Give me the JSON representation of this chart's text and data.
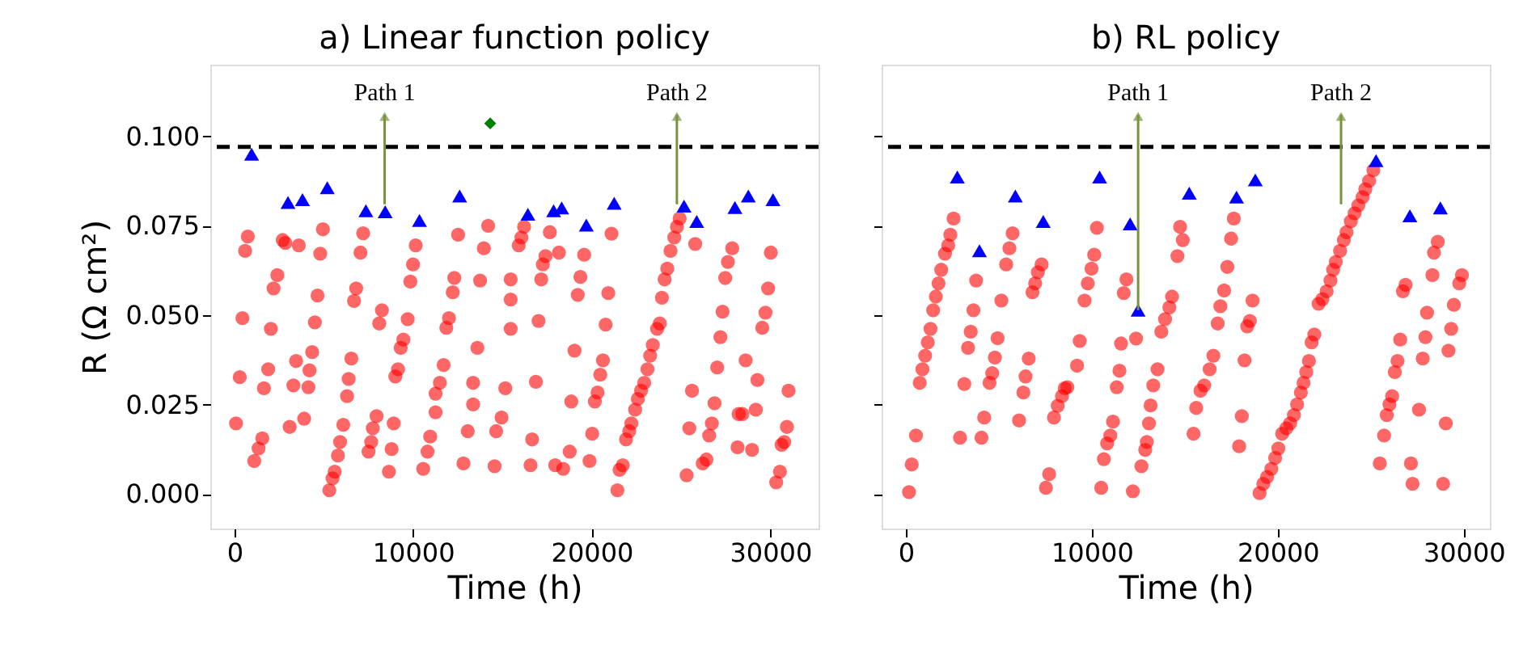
{
  "chart_data": [
    {
      "type": "scatter",
      "title": "a) Linear function policy",
      "xlabel": "Time (h)",
      "ylabel": "R (Ω cm²)",
      "xlim": [
        -1350,
        32700
      ],
      "ylim": [
        -0.0096,
        0.12
      ],
      "xticks": [
        0,
        10000,
        20000,
        30000
      ],
      "yticks": [
        {
          "value": 0,
          "label": "0.000"
        },
        {
          "value": 0.025,
          "label": "0.025"
        },
        {
          "value": 0.05,
          "label": "0.050"
        },
        {
          "value": 0.075,
          "label": "0.075"
        },
        {
          "value": 0.1,
          "label": "0.100"
        }
      ],
      "grid": false,
      "series": [
        {
          "marker": "circle",
          "color": "#ff0000",
          "x": [
            750,
            601,
            2703,
            3604,
            2853,
            4955,
            4805,
            7207,
            7057,
            2402,
            2192,
            4655,
            450,
            2042,
            4505,
            6817,
            6697,
            8258,
            8108,
            9700,
            9459,
            9309,
            4354,
            3453,
            1892,
            300,
            1652,
            3303,
            4144,
            4204,
            6547,
            6396,
            6306,
            9159,
            9009,
            11712,
            11502,
            11261,
            13363,
            15165,
            90,
            1561,
            1351,
            1111,
            3093,
            3904,
            6096,
            5916,
            5796,
            5615,
            5495,
            5315,
            7958,
            7748,
            7658,
            7508,
            8919,
            8799,
            8649,
            11261,
            10961,
            10811,
            10570,
            13063,
            13363,
            12823,
            14655,
            14955,
            14565,
            12312,
            12223,
            12012,
            11862,
            13603,
            12523,
            13964,
            14204,
            13754,
            10150,
            10000,
            9850,
            15466,
            15466,
            15466,
            16216,
            16066,
            15916,
            17658,
            17417,
            18168,
            17267,
            17177,
            17027,
            16877,
            16667,
            16577,
            19579,
            19369,
            19219,
            19039,
            20931,
            21111,
            20781,
            20631,
            20480,
            20330,
            20180,
            20030,
            19880,
            18859,
            18769,
            18408,
            17958,
            24925,
            24775,
            24625,
            24414,
            24234,
            24084,
            23934,
            23814,
            23664,
            23423,
            23273,
            23123,
            22943,
            22763,
            22583,
            22432,
            22222,
            22102,
            21922,
            21742,
            21562,
            21441,
            25796,
            25616,
            25466,
            25315,
            26216,
            26426,
            26577,
            26727,
            26877,
            27027,
            27207,
            27327,
            27477,
            27628,
            27868,
            28228,
            28438,
            28619,
            29279,
            29189,
            28979,
            28168,
            29550,
            29730,
            29880,
            30030,
            31021,
            30931,
            30781,
            30631,
            30541,
            30331
          ],
          "values": [
            0.072,
            0.068,
            0.071,
            0.0695,
            0.0702,
            0.074,
            0.0672,
            0.0729,
            0.0675,
            0.0612,
            0.0575,
            0.0555,
            0.0492,
            0.0462,
            0.048,
            0.0575,
            0.054,
            0.0514,
            0.0477,
            0.0489,
            0.0432,
            0.0409,
            0.0397,
            0.0372,
            0.0349,
            0.0327,
            0.0296,
            0.0304,
            0.0299,
            0.0346,
            0.0379,
            0.0322,
            0.0274,
            0.0349,
            0.0329,
            0.0361,
            0.0311,
            0.0281,
            0.0311,
            0.0296,
            0.0198,
            0.0156,
            0.0128,
            0.0093,
            0.0188,
            0.0211,
            0.0194,
            0.0146,
            0.0108,
            0.0063,
            0.0044,
            0.0011,
            0.0218,
            0.0184,
            0.0146,
            0.0119,
            0.0198,
            0.0126,
            0.0063,
            0.0229,
            0.0161,
            0.0119,
            0.0071,
            0.0176,
            0.0251,
            0.0086,
            0.0176,
            0.0214,
            0.0078,
            0.0604,
            0.0564,
            0.0492,
            0.0465,
            0.0409,
            0.0725,
            0.0687,
            0.075,
            0.0597,
            0.0695,
            0.0642,
            0.0594,
            0.06,
            0.0544,
            0.0462,
            0.0747,
            0.0717,
            0.0695,
            0.0732,
            0.0665,
            0.0675,
            0.0642,
            0.06,
            0.0484,
            0.0314,
            0.0153,
            0.0081,
            0.0669,
            0.0607,
            0.0557,
            0.0401,
            0.0562,
            0.0728,
            0.0474,
            0.0374,
            0.0334,
            0.0284,
            0.0259,
            0.0169,
            0.0093,
            0.0259,
            0.0119,
            0.0071,
            0.0081,
            0.077,
            0.0747,
            0.0717,
            0.068,
            0.063,
            0.06,
            0.0549,
            0.0477,
            0.0462,
            0.0417,
            0.0387,
            0.0349,
            0.0311,
            0.0289,
            0.0266,
            0.0236,
            0.0198,
            0.0176,
            0.0153,
            0.0081,
            0.0068,
            0.0011,
            0.0699,
            0.0289,
            0.0184,
            0.0053,
            0.0086,
            0.0097,
            0.0164,
            0.0198,
            0.0254,
            0.0354,
            0.0439,
            0.051,
            0.0604,
            0.0649,
            0.0687,
            0.0224,
            0.0224,
            0.0374,
            0.0319,
            0.0236,
            0.0124,
            0.0131,
            0.0465,
            0.0507,
            0.0575,
            0.0675,
            0.0289,
            0.0188,
            0.0146,
            0.0138,
            0.0063,
            0.0033
          ]
        },
        {
          "marker": "triangle",
          "color": "#0000ff",
          "x": [
            964,
            3000,
            3810,
            5200,
            7360,
            8440,
            10360,
            12610,
            16430,
            17870,
            18320,
            19700,
            21260,
            25170,
            25880,
            28020,
            28770,
            30150
          ],
          "values": [
            0.095,
            0.0815,
            0.0823,
            0.0856,
            0.0792,
            0.0789,
            0.0765,
            0.0833,
            0.0782,
            0.0792,
            0.08,
            0.0752,
            0.0813,
            0.0805,
            0.0762,
            0.0801,
            0.0833,
            0.0823
          ]
        },
        {
          "marker": "diamond",
          "color": "#008000",
          "x": [
            14320
          ],
          "values": [
            0.1036
          ]
        }
      ],
      "ref_lines": [
        {
          "axis": "y",
          "value": 0.097,
          "color": "#000000",
          "line_style": "dashed"
        }
      ],
      "annotations": [
        {
          "text": "Path 1",
          "x": 8410,
          "y": 0.081
        },
        {
          "text": "Path 2",
          "x": 24770,
          "y": 0.081
        }
      ]
    },
    {
      "type": "scatter",
      "title": "b) RL policy",
      "xlabel": "Time (h)",
      "xlim": [
        -1300,
        31400
      ],
      "ylim": [
        -0.0096,
        0.12
      ],
      "xticks": [
        0,
        10000,
        20000,
        30000
      ],
      "yticks": [
        {
          "value": 0,
          "label": null
        },
        {
          "value": 0.025,
          "label": null
        },
        {
          "value": 0.05,
          "label": null
        },
        {
          "value": 0.075,
          "label": null
        },
        {
          "value": 0.1,
          "label": null
        }
      ],
      "tick_labels": "x",
      "grid": false,
      "series": [
        {
          "marker": "circle",
          "color": "#ff0000",
          "x": [
            2569,
            2396,
            2280,
            2107,
            1905,
            1760,
            1616,
            1472,
            1328,
            1183,
            1039,
            895,
            750,
            548,
            318,
            173,
            3781,
            3636,
            3492,
            3348,
            3146,
            2915,
            4069,
            4214,
            5743,
            5570,
            5397,
            5137,
            4935,
            4791,
            4646,
            4502,
            7302,
            7100,
            6955,
            6811,
            6609,
            6436,
            6320,
            6090,
            10274,
            10130,
            9985,
            9784,
            9610,
            9351,
            9206,
            8687,
            8543,
            8398,
            8167,
            7965,
            7706,
            7532,
            11861,
            11717,
            11573,
            12381,
            11487,
            11342,
            11140,
            10996,
            10823,
            10649,
            10505,
            13535,
            13305,
            13160,
            13074,
            12958,
            12872,
            12669,
            12208,
            13738,
            13940,
            14171,
            14315,
            14603,
            14747,
            14892,
            16537,
            16335,
            16046,
            15844,
            15613,
            15469,
            17634,
            17489,
            17287,
            17114,
            16912,
            16768,
            18643,
            18499,
            18355,
            18211,
            18066,
            17922,
            25137,
            24907,
            24704,
            24560,
            24329,
            24127,
            23925,
            23694,
            23550,
            23348,
            23117,
            22973,
            22829,
            22626,
            22396,
            22193,
            21963,
            21818,
            21674,
            21530,
            21385,
            21241,
            21039,
            20866,
            20664,
            20461,
            20231,
            20029,
            19856,
            19654,
            19422,
            19221,
            19019,
            26869,
            26725,
            26580,
            26436,
            26292,
            26147,
            26003,
            25859,
            25714,
            25483,
            27158,
            27244,
            27590,
            27792,
            27936,
            28023,
            28312,
            28398,
            28600,
            28889,
            29033,
            29177,
            29322,
            29466,
            29755,
            29899
          ],
          "values": [
            0.077,
            0.0725,
            0.0695,
            0.0672,
            0.0627,
            0.0589,
            0.0552,
            0.0514,
            0.0462,
            0.0424,
            0.0387,
            0.0349,
            0.0311,
            0.0164,
            0.0083,
            0.0006,
            0.0597,
            0.0514,
            0.0454,
            0.0409,
            0.0308,
            0.0158,
            0.0158,
            0.0214,
            0.0729,
            0.0687,
            0.0642,
            0.0541,
            0.0436,
            0.0382,
            0.0338,
            0.0311,
            0.0642,
            0.062,
            0.0589,
            0.0564,
            0.0379,
            0.0329,
            0.0284,
            0.0206,
            0.0744,
            0.0669,
            0.063,
            0.0589,
            0.0541,
            0.0428,
            0.0359,
            0.0299,
            0.0296,
            0.0274,
            0.0247,
            0.0214,
            0.0056,
            0.0018,
            0.06,
            0.0562,
            0.0421,
            0.0435,
            0.0345,
            0.0299,
            0.0203,
            0.0164,
            0.0142,
            0.0098,
            0.0018,
            0.0349,
            0.0304,
            0.0248,
            0.0198,
            0.0146,
            0.0124,
            0.0078,
            0.0008,
            0.0454,
            0.0489,
            0.0522,
            0.0552,
            0.0665,
            0.0747,
            0.071,
            0.0387,
            0.0349,
            0.0304,
            0.0289,
            0.0241,
            0.0169,
            0.077,
            0.0714,
            0.0635,
            0.0569,
            0.0525,
            0.0477,
            0.0541,
            0.0484,
            0.0469,
            0.0374,
            0.0218,
            0.0134,
            0.0905,
            0.0875,
            0.0852,
            0.083,
            0.0807,
            0.0785,
            0.0762,
            0.0732,
            0.071,
            0.068,
            0.0649,
            0.0627,
            0.0597,
            0.0567,
            0.0545,
            0.0532,
            0.0446,
            0.0424,
            0.0372,
            0.0341,
            0.0311,
            0.0284,
            0.0251,
            0.0221,
            0.0198,
            0.0184,
            0.0169,
            0.0128,
            0.0101,
            0.0071,
            0.0048,
            0.0029,
            0.0003,
            0.0585,
            0.0567,
            0.0432,
            0.0372,
            0.0341,
            0.0274,
            0.0251,
            0.0221,
            0.0164,
            0.0086,
            0.0086,
            0.0029,
            0.0236,
            0.0379,
            0.0439,
            0.0507,
            0.0612,
            0.0675,
            0.0705,
            0.0029,
            0.0198,
            0.0401,
            0.0462,
            0.0529,
            0.0589,
            0.0612
          ]
        },
        {
          "marker": "triangle",
          "color": "#0000ff",
          "x": [
            2770,
            3960,
            5890,
            7390,
            10420,
            12060,
            12490,
            15240,
            17780,
            18790,
            25280,
            27100,
            28740
          ],
          "values": [
            0.0886,
            0.068,
            0.0833,
            0.0762,
            0.0886,
            0.0755,
            0.0514,
            0.0841,
            0.083,
            0.0878,
            0.0932,
            0.0778,
            0.08
          ]
        }
      ],
      "ref_lines": [
        {
          "axis": "y",
          "value": 0.097,
          "color": "#000000",
          "line_style": "dashed"
        }
      ],
      "annotations": [
        {
          "text": "Path 1",
          "x": 12490,
          "y": 0.0514
        },
        {
          "text": "Path 2",
          "x": 23400,
          "y": 0.081
        }
      ]
    }
  ]
}
